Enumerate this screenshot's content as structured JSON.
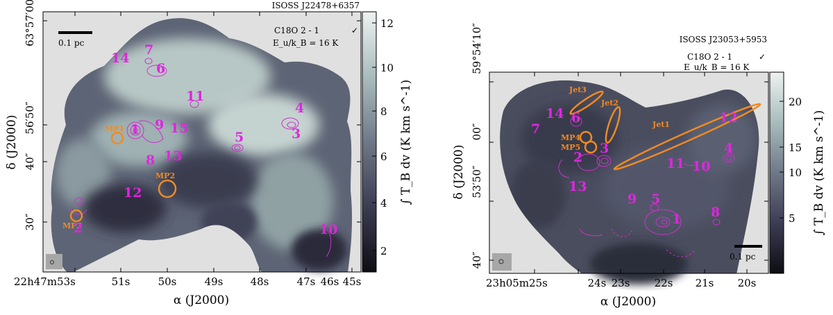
{
  "chart_data": [
    {
      "type": "heatmap",
      "title": "ISOSS J22478+6357",
      "annotation": {
        "line": "C18O 2 - 1",
        "check": "✓",
        "energy": "E_u/k_B = 16 K"
      },
      "scalebar": "0.1 pc",
      "xlabel": "α (J2000)",
      "ylabel": "δ (J2000)",
      "x_ticks": [
        "22h47m53s",
        "51s",
        "50s",
        "49s",
        "48s",
        "47s",
        "46s",
        "45s"
      ],
      "y_ticks": [
        "63°57′00″",
        "56′50″",
        "40″",
        "30″"
      ],
      "colorbar": {
        "label": "∫ T_B dv (K km s^-1)",
        "ticks": [
          "2",
          "4",
          "6",
          "8",
          "10",
          "12"
        ],
        "range": [
          1,
          12.5
        ]
      },
      "sources": [
        "1",
        "2",
        "3",
        "4",
        "5",
        "6",
        "7",
        "8",
        "9",
        "10",
        "11",
        "12",
        "13",
        "14",
        "15"
      ],
      "mp_labels": [
        "MP1",
        "MP2",
        "MP3"
      ],
      "colors": {
        "contour": "#cc33cc",
        "source_label": "#e026e0",
        "orange": "#f08a24",
        "background": "#e0e0e0"
      }
    },
    {
      "type": "heatmap",
      "title": "ISOSS J23053+5953",
      "annotation": {
        "line": "C18O 2 - 1",
        "check": "✓",
        "energy": "E_u/k_B = 16 K"
      },
      "scalebar": "0.1 pc",
      "xlabel": "α (J2000)",
      "ylabel": "δ (J2000)",
      "x_ticks": [
        "23h05m25s",
        "24s",
        "23s",
        "22s",
        "21s",
        "20s"
      ],
      "y_ticks": [
        "59°54′10″",
        "00″",
        "53′50″",
        "40″"
      ],
      "colorbar": {
        "label": "∫ T_B dv (K km s^-1)",
        "ticks": [
          "5",
          "10",
          "15",
          "20"
        ],
        "range": [
          1,
          23
        ]
      },
      "sources": [
        "1",
        "2",
        "3",
        "4",
        "5",
        "6",
        "7",
        "8",
        "9",
        "10",
        "11",
        "12",
        "13",
        "14"
      ],
      "mp_labels": [
        "MP4",
        "MP5"
      ],
      "jet_labels": [
        "Jet1",
        "Jet2",
        "Jet3"
      ],
      "colors": {
        "contour": "#cc33cc",
        "source_label": "#e026e0",
        "orange": "#f08a24",
        "background": "#e0e0e0"
      }
    }
  ]
}
